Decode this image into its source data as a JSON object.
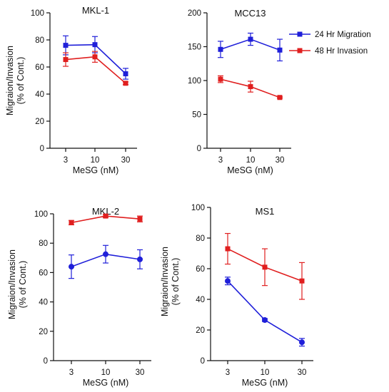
{
  "colors": {
    "blue": "#1f1fd9",
    "red": "#e01f1f",
    "axis": "#111111"
  },
  "legend": [
    {
      "label": "24 Hr Migration",
      "color": "#1f1fd9",
      "marker": "square"
    },
    {
      "label": "48 Hr Invasion",
      "color": "#e01f1f",
      "marker": "square"
    }
  ],
  "chart_data": [
    {
      "id": "mkl1",
      "type": "line",
      "title": "MKL-1",
      "xlabel": "MeSG (nM)",
      "ylabel": [
        "Migraion/Invasion",
        "(% of Cont.)"
      ],
      "categories": [
        "3",
        "10",
        "30"
      ],
      "ylim": [
        0,
        100
      ],
      "yticks": [
        "0",
        "20",
        "40",
        "60",
        "80",
        "100"
      ],
      "marker": "square",
      "grid": false,
      "series": [
        {
          "name": "24 Hr Migration",
          "color": "#1f1fd9",
          "values": [
            76,
            76.5,
            55
          ],
          "errors": [
            7,
            6,
            4
          ]
        },
        {
          "name": "48 Hr Invasion",
          "color": "#e01f1f",
          "values": [
            65.5,
            67.5,
            48
          ],
          "errors": [
            5,
            4,
            1
          ]
        }
      ]
    },
    {
      "id": "mcc13",
      "type": "line",
      "title": "MCC13",
      "xlabel": "MeSG (nM)",
      "ylabel": [
        "",
        ""
      ],
      "categories": [
        "3",
        "10",
        "30"
      ],
      "ylim": [
        0,
        200
      ],
      "yticks": [
        "0",
        "50",
        "100",
        "150",
        "200"
      ],
      "marker": "square",
      "grid": false,
      "series": [
        {
          "name": "24 Hr Migration",
          "color": "#1f1fd9",
          "values": [
            146,
            161,
            145
          ],
          "errors": [
            12,
            9,
            16
          ]
        },
        {
          "name": "48 Hr Invasion",
          "color": "#e01f1f",
          "values": [
            102,
            91,
            75
          ],
          "errors": [
            5,
            8,
            1
          ]
        }
      ]
    },
    {
      "id": "mkl2",
      "type": "line",
      "title": "MKL-2",
      "xlabel": "MeSG (nM)",
      "ylabel": [
        "Migraion/Invasion",
        "(% of Cont.)"
      ],
      "categories": [
        "3",
        "10",
        "30"
      ],
      "ylim": [
        0,
        100
      ],
      "yticks": [
        "0",
        "20",
        "40",
        "60",
        "80",
        "100"
      ],
      "marker": "circle",
      "grid": false,
      "series": [
        {
          "name": "",
          "color": "#e01f1f",
          "marker": "square",
          "values": [
            94,
            98.5,
            96.5
          ],
          "errors": [
            1.5,
            1,
            2
          ]
        },
        {
          "name": "",
          "color": "#1f1fd9",
          "marker": "circle",
          "values": [
            64,
            72.5,
            69
          ],
          "errors": [
            8,
            6,
            6.5
          ]
        }
      ]
    },
    {
      "id": "ms1",
      "type": "line",
      "title": "MS1",
      "xlabel": "MeSG (nM)",
      "ylabel": [
        "Migraion/Invasion",
        "(% of Cont.)"
      ],
      "categories": [
        "3",
        "10",
        "30"
      ],
      "ylim": [
        0,
        100
      ],
      "yticks": [
        "0",
        "20",
        "40",
        "60",
        "80",
        "100"
      ],
      "marker": "circle",
      "grid": false,
      "series": [
        {
          "name": "",
          "color": "#e01f1f",
          "marker": "square",
          "values": [
            73,
            61,
            52
          ],
          "errors": [
            10,
            12,
            12
          ]
        },
        {
          "name": "",
          "color": "#1f1fd9",
          "marker": "circle",
          "values": [
            52,
            26.5,
            12
          ],
          "errors": [
            2.5,
            1,
            2.5
          ]
        }
      ]
    }
  ]
}
